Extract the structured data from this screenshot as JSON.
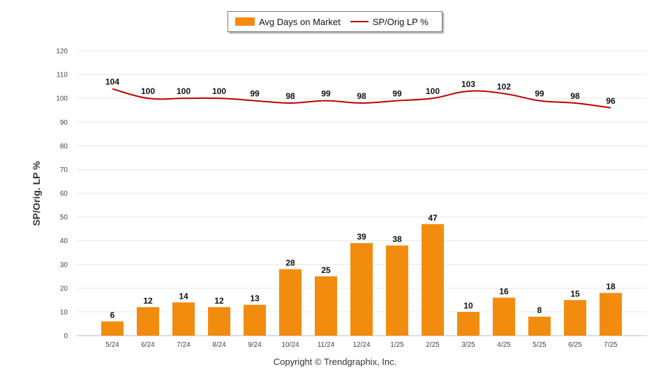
{
  "legend": {
    "bar_label": "Avg Days on Market",
    "line_label": "SP/Orig LP %"
  },
  "copyright": "Copyright © Trendgraphix, Inc.",
  "colors": {
    "bar": "#F28C0F",
    "line": "#C00000",
    "grid": "#e6e6e6"
  },
  "chart_data": {
    "type": "bar",
    "ylabel": "SP/Orig. LP %",
    "ylim": [
      0,
      120
    ],
    "yticks": [
      0,
      10,
      20,
      30,
      40,
      50,
      60,
      70,
      80,
      90,
      100,
      110,
      120
    ],
    "categories": [
      "5/24",
      "6/24",
      "7/24",
      "8/24",
      "9/24",
      "10/24",
      "11/24",
      "12/24",
      "1/25",
      "2/25",
      "3/25",
      "4/25",
      "5/25",
      "6/25",
      "7/25"
    ],
    "series": [
      {
        "name": "Avg Days on Market",
        "type": "bar",
        "values": [
          6,
          12,
          14,
          12,
          13,
          28,
          25,
          39,
          38,
          47,
          10,
          16,
          8,
          15,
          18
        ]
      },
      {
        "name": "SP/Orig LP %",
        "type": "line",
        "values": [
          104,
          100,
          100,
          100,
          99,
          98,
          99,
          98,
          99,
          100,
          103,
          102,
          99,
          98,
          96
        ]
      }
    ],
    "grid": true,
    "legend_position": "top-center"
  }
}
